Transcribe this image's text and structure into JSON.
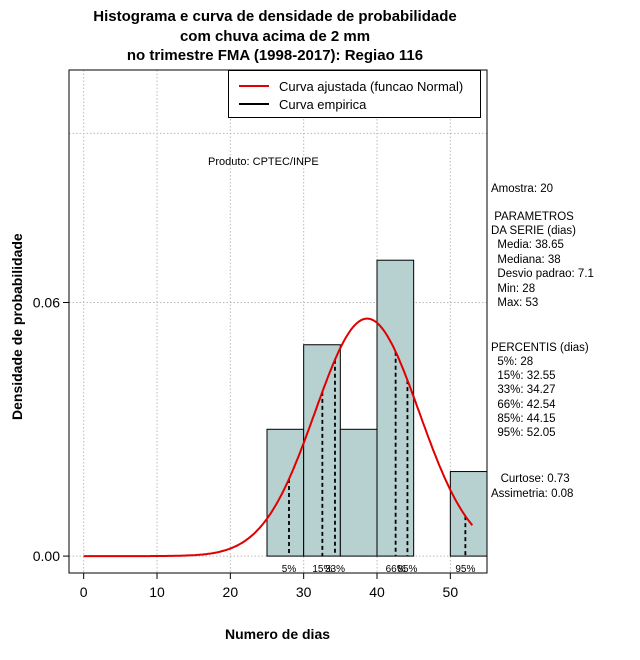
{
  "title": {
    "line1": "Histograma e curva de densidade de probabilidade",
    "line2": "com chuva acima de 2 mm",
    "line3": "no trimestre FMA (1998-2017): Regiao 116"
  },
  "legend": {
    "fitted": "Curva ajustada (funcao Normal)",
    "empirical": "Curva empirica"
  },
  "produto": "Produto: CPTEC/INPE",
  "stats": {
    "amostra": "Amostra: 20",
    "param_title1": " PARAMETROS",
    "param_title2": "DA SERIE (dias)",
    "media": "  Media: 38.65",
    "mediana": "  Mediana: 38",
    "desvio": "  Desvio padrao: 7.1",
    "min": "  Min: 28",
    "max": "  Max: 53",
    "percentis_title": "PERCENTIS (dias)",
    "p5": "  5%: 28",
    "p15": "  15%: 32.55",
    "p33": "  33%: 34.27",
    "p66": "  66%: 42.54",
    "p85": "  85%: 44.15",
    "p95": "  95%: 52.05",
    "curtose": "   Curtose: 0.73",
    "assimetria": "Assimetria: 0.08"
  },
  "colors": {
    "bar_fill": "#b7d0d0",
    "curve": "#e00000",
    "grid": "#bbbbbb"
  },
  "chart_data": {
    "type": "bar",
    "title": "Histograma e curva de densidade de probabilidade com chuva acima de 2 mm no trimestre FMA (1998-2017): Regiao 116",
    "xlabel": "Numero de dias",
    "ylabel": "Densidade de probabilidade",
    "xlim": [
      -2,
      55
    ],
    "ylim": [
      -0.004,
      0.115
    ],
    "x_ticks": [
      0,
      10,
      20,
      30,
      40,
      50
    ],
    "y_ticks": [
      0.0,
      0.06
    ],
    "y_tick_labels": [
      "0.00",
      "0.06"
    ],
    "bins": [
      {
        "from": 25,
        "to": 30,
        "density": 0.03
      },
      {
        "from": 30,
        "to": 35,
        "density": 0.05
      },
      {
        "from": 35,
        "to": 40,
        "density": 0.03
      },
      {
        "from": 40,
        "to": 45,
        "density": 0.07
      },
      {
        "from": 45,
        "to": 50,
        "density": 0.0
      },
      {
        "from": 50,
        "to": 55,
        "density": 0.02
      }
    ],
    "normal_fit": {
      "mean": 38.65,
      "sd": 7.1,
      "x_from": 0,
      "x_to": 53
    },
    "percentiles": [
      {
        "label": "5%",
        "value": 28
      },
      {
        "label": "15%",
        "value": 32.55
      },
      {
        "label": "33%",
        "value": 34.27
      },
      {
        "label": "66%",
        "value": 42.54
      },
      {
        "label": "85%",
        "value": 44.15
      },
      {
        "label": "95%",
        "value": 52.05
      }
    ],
    "grid": true
  }
}
